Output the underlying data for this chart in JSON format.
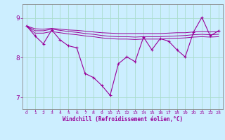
{
  "xlabel": "Windchill (Refroidissement éolien,°C)",
  "bg_color": "#cceeff",
  "grid_color": "#aaddcc",
  "line_color": "#990099",
  "spine_color": "#888888",
  "xlim": [
    -0.5,
    23.5
  ],
  "ylim": [
    6.7,
    9.35
  ],
  "yticks": [
    7,
    8,
    9
  ],
  "xticks": [
    0,
    1,
    2,
    3,
    4,
    5,
    6,
    7,
    8,
    9,
    10,
    11,
    12,
    13,
    14,
    15,
    16,
    17,
    18,
    19,
    20,
    21,
    22,
    23
  ],
  "series1": [
    8.8,
    8.55,
    8.35,
    8.7,
    8.45,
    8.3,
    8.25,
    7.6,
    7.5,
    7.3,
    7.05,
    7.85,
    8.02,
    7.9,
    8.52,
    8.2,
    8.48,
    8.42,
    8.2,
    8.02,
    8.65,
    9.02,
    8.55,
    8.68
  ],
  "series2": [
    8.8,
    8.73,
    8.72,
    8.74,
    8.72,
    8.7,
    8.69,
    8.67,
    8.65,
    8.63,
    8.62,
    8.61,
    8.61,
    8.61,
    8.61,
    8.61,
    8.61,
    8.62,
    8.63,
    8.63,
    8.65,
    8.66,
    8.65,
    8.66
  ],
  "series3": [
    8.8,
    8.68,
    8.68,
    8.72,
    8.69,
    8.66,
    8.64,
    8.61,
    8.59,
    8.56,
    8.54,
    8.53,
    8.53,
    8.52,
    8.53,
    8.53,
    8.53,
    8.54,
    8.55,
    8.56,
    8.58,
    8.59,
    8.58,
    8.59
  ],
  "series4": [
    8.8,
    8.62,
    8.62,
    8.66,
    8.63,
    8.6,
    8.58,
    8.55,
    8.53,
    8.5,
    8.48,
    8.47,
    8.47,
    8.46,
    8.47,
    8.47,
    8.47,
    8.48,
    8.49,
    8.5,
    8.52,
    8.53,
    8.52,
    8.53
  ]
}
